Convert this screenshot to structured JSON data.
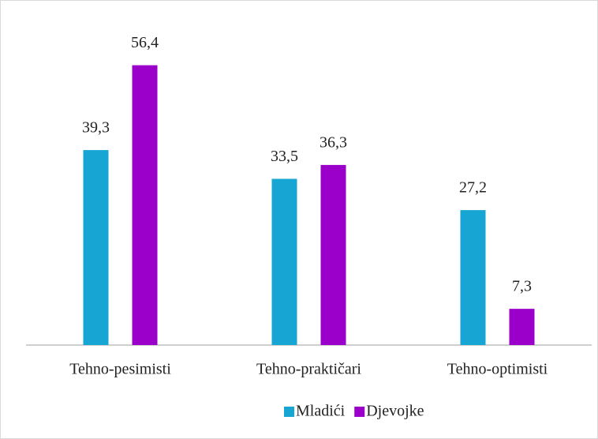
{
  "chart_data": {
    "type": "bar",
    "categories": [
      "Tehno-pesimisti",
      "Tehno-praktičari",
      "Tehno-optimisti"
    ],
    "series": [
      {
        "name": "Mladići",
        "color": "#17a6d3",
        "values": [
          39.3,
          33.5,
          27.2
        ],
        "value_labels": [
          "39,3",
          "33,5",
          "27,2"
        ]
      },
      {
        "name": "Djevojke",
        "color": "#9a00c9",
        "values": [
          56.4,
          36.3,
          7.3
        ],
        "value_labels": [
          "56,4",
          "36,3",
          "7,3"
        ]
      }
    ],
    "ylim": [
      0,
      60
    ],
    "legend": "bottom"
  }
}
